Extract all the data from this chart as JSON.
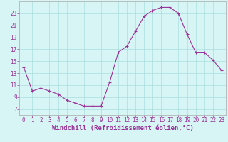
{
  "hours": [
    0,
    1,
    2,
    3,
    4,
    5,
    6,
    7,
    8,
    9,
    10,
    11,
    12,
    13,
    14,
    15,
    16,
    17,
    18,
    19,
    20,
    21,
    22,
    23
  ],
  "values": [
    14.0,
    10.0,
    10.5,
    10.0,
    9.5,
    8.5,
    8.0,
    7.5,
    7.5,
    7.5,
    11.5,
    16.5,
    17.5,
    20.0,
    22.5,
    23.5,
    24.0,
    24.0,
    23.0,
    19.5,
    16.5,
    16.5,
    15.2,
    13.5
  ],
  "line_color": "#993399",
  "marker": "+",
  "marker_size": 3,
  "marker_linewidth": 0.8,
  "bg_color": "#d8f5f5",
  "grid_color": "#aadddd",
  "axis_label_color": "#993399",
  "tick_label_color": "#993399",
  "spine_color": "#aaaaaa",
  "xlabel": "Windchill (Refroidissement éolien,°C)",
  "ylim": [
    6,
    25
  ],
  "yticks": [
    7,
    9,
    11,
    13,
    15,
    17,
    19,
    21,
    23
  ],
  "xlim": [
    -0.5,
    23.5
  ],
  "xticks": [
    0,
    1,
    2,
    3,
    4,
    5,
    6,
    7,
    8,
    9,
    10,
    11,
    12,
    13,
    14,
    15,
    16,
    17,
    18,
    19,
    20,
    21,
    22,
    23
  ],
  "tick_fontsize": 5.5,
  "xlabel_fontsize": 6.5,
  "linewidth": 0.8
}
